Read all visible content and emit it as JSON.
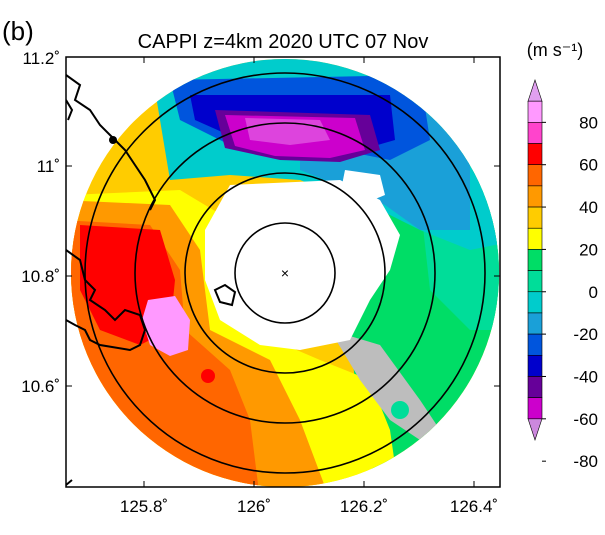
{
  "panel_label": "(b)",
  "title": "CAPPI z=4km 2020 UTC 07 Nov",
  "colorbar": {
    "unit": "(m s⁻¹)",
    "ticks": [
      "80",
      "60",
      "40",
      "20",
      "0",
      "-20",
      "-40",
      "-60",
      "-80"
    ],
    "colors": [
      "#e0a0f0",
      "#ff99ff",
      "#ff44cc",
      "#ff0000",
      "#ff6600",
      "#ff9900",
      "#ffcc00",
      "#ffff00",
      "#00dd66",
      "#00dd99",
      "#00cccc",
      "#1aa0d8",
      "#0055dd",
      "#0000cc",
      "#660099",
      "#cc00cc",
      "#cc88dd"
    ]
  },
  "axes": {
    "lat_labels": [
      "11.2˚",
      "11˚",
      "10.8˚",
      "10.6˚"
    ],
    "lon_labels": [
      "125.8˚",
      "126˚",
      "126.2˚",
      "126.4˚"
    ]
  },
  "radar_center_marker": "×"
}
